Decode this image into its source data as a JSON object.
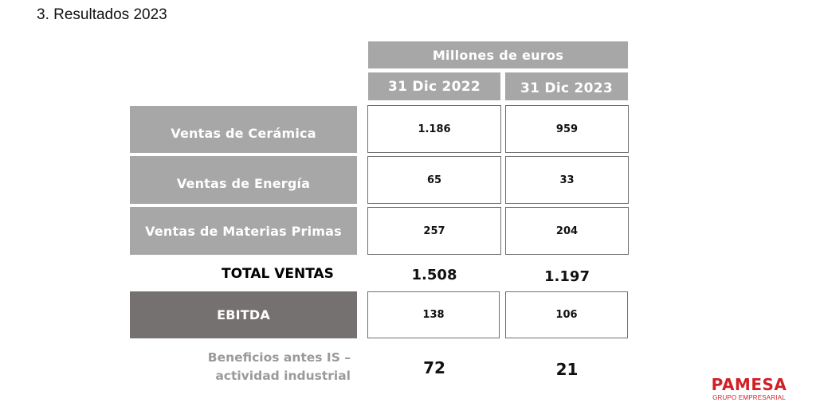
{
  "page": {
    "title": "3. Resultados 2023"
  },
  "table": {
    "units": "Millones de euros",
    "columns": [
      "31 Dic 2022",
      "31 Dic 2023"
    ],
    "rows": [
      {
        "label": "Ventas de Cerámica",
        "values": [
          "1.186",
          "959"
        ]
      },
      {
        "label": "Ventas de Energía",
        "values": [
          "65",
          "33"
        ]
      },
      {
        "label": "Ventas de Materias Primas",
        "values": [
          "257",
          "204"
        ]
      }
    ],
    "total": {
      "label": "TOTAL VENTAS",
      "values": [
        "1.508",
        "1.197"
      ]
    },
    "ebitda": {
      "label": "EBITDA",
      "values": [
        "138",
        "106"
      ]
    },
    "bai": {
      "label_line1": "Beneficios antes IS –",
      "label_line2": "actividad industrial",
      "values": [
        "72",
        "21"
      ]
    }
  },
  "logo": {
    "name": "PAMESA",
    "tagline": "GRUPO EMPRESARIAL"
  },
  "colors": {
    "header_gray": "#a7a7a7",
    "ebitda_dark": "#757170",
    "brand_red": "#d21f26"
  }
}
